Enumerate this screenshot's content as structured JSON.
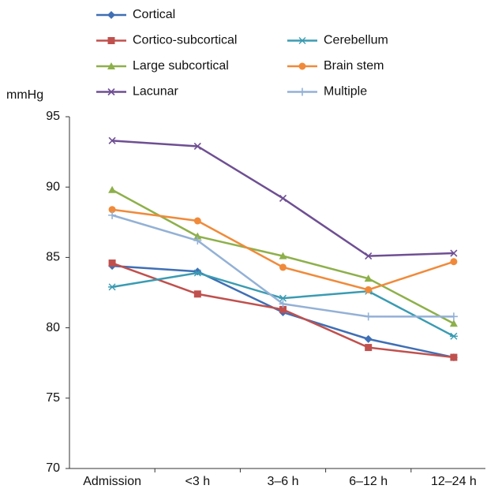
{
  "chart_data": {
    "type": "line",
    "ylabel": "mmHg",
    "categories": [
      "Admission",
      "<3 h",
      "3–6 h",
      "6–12 h",
      "12–24 h"
    ],
    "series": [
      {
        "name": "Cortical",
        "color": "#3f6fb5",
        "marker": "diamond",
        "values": [
          84.4,
          84.0,
          81.1,
          79.2,
          77.9
        ]
      },
      {
        "name": "Cortico-subcortical",
        "color": "#c0504d",
        "marker": "square",
        "values": [
          84.6,
          82.4,
          81.3,
          78.6,
          77.9
        ]
      },
      {
        "name": "Large subcortical",
        "color": "#8db04a",
        "marker": "triangle",
        "values": [
          89.8,
          86.5,
          85.1,
          83.5,
          80.3
        ]
      },
      {
        "name": "Lacunar",
        "color": "#6f4f93",
        "marker": "x",
        "values": [
          93.3,
          92.9,
          89.2,
          85.1,
          85.3
        ]
      },
      {
        "name": "Cerebellum",
        "color": "#3a9bb2",
        "marker": "asterisk",
        "values": [
          82.9,
          83.9,
          82.1,
          82.6,
          79.4
        ]
      },
      {
        "name": "Brain stem",
        "color": "#f08a3a",
        "marker": "circle",
        "values": [
          88.4,
          87.6,
          84.3,
          82.7,
          84.7
        ]
      },
      {
        "name": "Multiple",
        "color": "#93b1d6",
        "marker": "plus",
        "values": [
          88.0,
          86.2,
          81.7,
          80.8,
          80.8
        ]
      }
    ],
    "ylim": [
      70,
      95
    ],
    "yticks": [
      70,
      75,
      80,
      85,
      90,
      95
    ]
  }
}
